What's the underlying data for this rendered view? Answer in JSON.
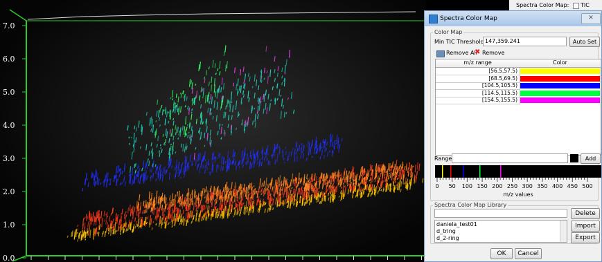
{
  "plot": {
    "y_labels": [
      "0.0",
      "1.0",
      "2.0",
      "3.0",
      "4.0",
      "5.0",
      "6.0",
      "7.0"
    ]
  },
  "background_panel": {
    "label": "Spectra Color Map:",
    "checkbox": "TIC"
  },
  "dialog": {
    "title": "Spectra Color Map",
    "color_map": {
      "group_label": "Color Map",
      "threshold_label": "Min TIC Threshold:",
      "threshold_value": "147,359.241",
      "auto_set": "Auto Set",
      "remove_all": "Remove All",
      "remove": "Remove",
      "table": {
        "headers": [
          "m/z range",
          "Color"
        ],
        "rows": [
          {
            "range": "[56.5,57.5)",
            "color": "#ffff00"
          },
          {
            "range": "[68.5,69.5)",
            "color": "#ff0000"
          },
          {
            "range": "[104.5,105.5)",
            "color": "#0000ff"
          },
          {
            "range": "[114.5,115.5)",
            "color": "#00ff40"
          },
          {
            "range": "[154.5,155.5)",
            "color": "#ff00ff"
          }
        ]
      },
      "range_label": "Range:",
      "add": "Add",
      "axis_ticks": [
        "0",
        "50",
        "100",
        "150",
        "200",
        "250",
        "300",
        "350",
        "400",
        "450",
        "500"
      ],
      "axis_label": "m/z values"
    },
    "library": {
      "group_label": "Spectra Color Map Library",
      "delete": "Delete",
      "import": "Import",
      "export": "Export",
      "items": [
        "daniela_test01",
        "d_tring",
        "d_2-ring"
      ]
    },
    "ok": "OK",
    "cancel": "Cancel"
  }
}
